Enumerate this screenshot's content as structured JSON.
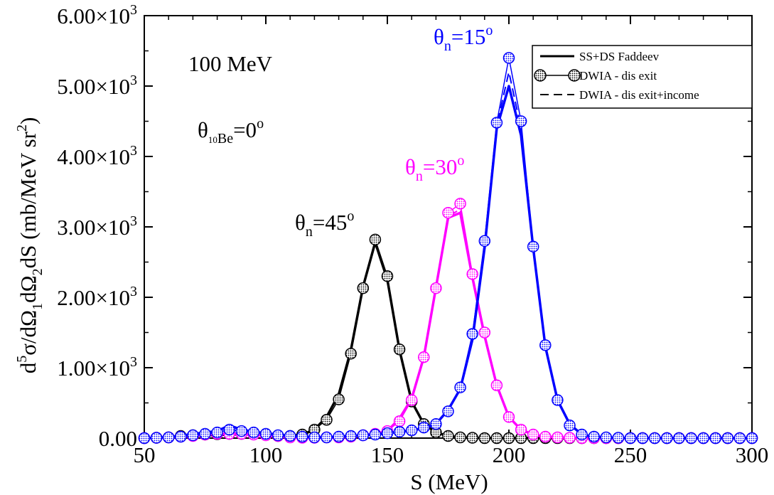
{
  "chart_data": {
    "type": "line",
    "title": "",
    "xlabel": "S (MeV)",
    "ylabel_parts": {
      "d": "d",
      "exp5": "5",
      "sigma": "σ/dΩ",
      "sub1": "1",
      "mid": "dΩ",
      "sub2": "2",
      "dS": "dS  (mb/MeV sr",
      "exp2": "2",
      "close": ")"
    },
    "xlim": [
      50,
      300
    ],
    "ylim": [
      0,
      6000
    ],
    "grid": false,
    "legend_position": "top-right",
    "x_ticks": [
      50,
      100,
      150,
      200,
      250,
      300
    ],
    "x_tick_labels": [
      "50",
      "100",
      "150",
      "200",
      "250",
      "300"
    ],
    "y_ticks": [
      0,
      1000,
      2000,
      3000,
      4000,
      5000,
      6000
    ],
    "y_tick_labels": [
      {
        "mant": "0.00",
        "exp": ""
      },
      {
        "mant": "1.00×10",
        "exp": "3"
      },
      {
        "mant": "2.00×10",
        "exp": "3"
      },
      {
        "mant": "3.00×10",
        "exp": "3"
      },
      {
        "mant": "4.00×10",
        "exp": "3"
      },
      {
        "mant": "5.00×10",
        "exp": "3"
      },
      {
        "mant": "6.00×10",
        "exp": "3"
      }
    ],
    "legend": [
      {
        "label": "SS+DS Faddeev",
        "style": "solid"
      },
      {
        "label": "DWIA - dis exit",
        "style": "circle"
      },
      {
        "label": "DWIA - dis exit+income",
        "style": "dashed"
      }
    ],
    "annotations": {
      "energy": "100 MeV",
      "be_angle": {
        "theta": "θ",
        "sub_sup": "10",
        "sub": "Be",
        "eq": "=0",
        "sup": "o"
      },
      "n45": {
        "theta": "θ",
        "sub": "n",
        "eq": "=45",
        "sup": "o"
      },
      "n30": {
        "theta": "θ",
        "sub": "n",
        "eq": "=30",
        "sup": "o"
      },
      "n15": {
        "theta": "θ",
        "sub": "n",
        "eq": "=15",
        "sup": "o"
      }
    },
    "series": [
      {
        "angle": "45",
        "color": "#000000",
        "x": [
          50,
          55,
          60,
          65,
          70,
          75,
          80,
          85,
          90,
          95,
          100,
          105,
          110,
          115,
          120,
          125,
          130,
          135,
          140,
          145,
          150,
          155,
          160,
          165,
          170,
          175,
          180,
          185,
          190,
          195,
          200,
          205,
          210,
          215,
          220,
          225,
          230,
          235,
          240,
          245,
          250,
          255,
          260,
          265,
          270,
          275,
          280,
          285,
          290,
          295,
          300
        ],
        "faddeev": [
          0,
          5,
          10,
          20,
          30,
          40,
          45,
          50,
          55,
          50,
          40,
          30,
          30,
          50,
          120,
          300,
          620,
          1250,
          2150,
          2780,
          2250,
          1250,
          520,
          200,
          80,
          30,
          10,
          5,
          0,
          0,
          0,
          0,
          0,
          0,
          0,
          0,
          0,
          0,
          0,
          0,
          0,
          0,
          0,
          0,
          0,
          0,
          0,
          0,
          0,
          0,
          0
        ],
        "dwia_exit": [
          0,
          5,
          10,
          30,
          40,
          50,
          55,
          60,
          60,
          55,
          45,
          30,
          30,
          50,
          120,
          260,
          550,
          1200,
          2130,
          2820,
          2300,
          1260,
          520,
          200,
          80,
          30,
          10,
          5,
          0,
          0,
          0,
          0,
          0,
          0,
          0,
          0,
          0,
          0,
          0,
          0,
          0,
          0,
          0,
          0,
          0,
          0,
          0,
          0,
          0,
          0,
          0
        ],
        "dwia_income": [
          0,
          5,
          10,
          25,
          35,
          45,
          50,
          55,
          55,
          50,
          40,
          30,
          30,
          50,
          120,
          290,
          600,
          1230,
          2140,
          2760,
          2260,
          1240,
          510,
          195,
          75,
          30,
          10,
          5,
          0,
          0,
          0,
          0,
          0,
          0,
          0,
          0,
          0,
          0,
          0,
          0,
          0,
          0,
          0,
          0,
          0,
          0,
          0,
          0,
          0,
          0,
          0
        ]
      },
      {
        "angle": "30",
        "color": "#ff00ff",
        "x": [
          50,
          55,
          60,
          65,
          70,
          75,
          80,
          85,
          90,
          95,
          100,
          105,
          110,
          115,
          120,
          125,
          130,
          135,
          140,
          145,
          150,
          155,
          160,
          165,
          170,
          175,
          180,
          185,
          190,
          195,
          200,
          205,
          210,
          215,
          220,
          225,
          230,
          235,
          240,
          245,
          250,
          255,
          260,
          265,
          270,
          275,
          280,
          285,
          290,
          295,
          300
        ],
        "faddeev": [
          0,
          5,
          10,
          20,
          30,
          50,
          60,
          60,
          60,
          50,
          40,
          30,
          10,
          5,
          5,
          10,
          10,
          20,
          40,
          60,
          100,
          280,
          560,
          1150,
          2140,
          3130,
          3200,
          2280,
          1450,
          750,
          300,
          120,
          50,
          20,
          10,
          5,
          0,
          0,
          0,
          0,
          0,
          0,
          0,
          0,
          0,
          0,
          0,
          0,
          0,
          0,
          0
        ],
        "dwia_exit": [
          0,
          5,
          10,
          20,
          30,
          50,
          60,
          60,
          60,
          50,
          40,
          30,
          10,
          5,
          5,
          10,
          10,
          20,
          40,
          60,
          100,
          240,
          540,
          1150,
          2130,
          3200,
          3330,
          2330,
          1500,
          750,
          300,
          120,
          50,
          20,
          10,
          5,
          0,
          0,
          0,
          0,
          0,
          0,
          0,
          0,
          0,
          0,
          0,
          0,
          0,
          0,
          0,
          0
        ],
        "dwia_income": [
          0,
          5,
          10,
          20,
          30,
          50,
          60,
          60,
          60,
          50,
          40,
          30,
          10,
          5,
          5,
          10,
          10,
          20,
          40,
          60,
          100,
          270,
          550,
          1150,
          2130,
          3150,
          3250,
          2300,
          1470,
          750,
          300,
          120,
          50,
          20,
          10,
          5,
          0,
          0,
          0,
          0,
          0,
          0,
          0,
          0,
          0,
          0,
          0,
          0,
          0,
          0,
          0,
          0
        ]
      },
      {
        "angle": "15",
        "color": "#0000ff",
        "x": [
          50,
          55,
          60,
          65,
          70,
          75,
          80,
          85,
          90,
          95,
          100,
          105,
          110,
          115,
          120,
          125,
          130,
          135,
          140,
          145,
          150,
          155,
          160,
          165,
          170,
          175,
          180,
          185,
          190,
          195,
          200,
          205,
          210,
          215,
          220,
          225,
          230,
          235,
          240,
          245,
          250,
          255,
          260,
          265,
          270,
          275,
          280,
          285,
          290,
          295,
          300
        ],
        "faddeev": [
          0,
          5,
          15,
          30,
          60,
          80,
          100,
          180,
          120,
          90,
          70,
          50,
          30,
          20,
          10,
          10,
          20,
          30,
          40,
          50,
          70,
          90,
          110,
          140,
          200,
          400,
          700,
          1400,
          2700,
          4400,
          5000,
          4300,
          2700,
          1300,
          540,
          200,
          50,
          20,
          10,
          5,
          0,
          0,
          0,
          0,
          0,
          0,
          0,
          0,
          0,
          0,
          0
        ],
        "dwia_exit": [
          0,
          5,
          10,
          20,
          40,
          60,
          80,
          120,
          100,
          80,
          60,
          40,
          30,
          20,
          10,
          10,
          20,
          30,
          40,
          50,
          70,
          90,
          110,
          150,
          200,
          380,
          720,
          1480,
          2800,
          4480,
          5400,
          4500,
          2720,
          1320,
          540,
          180,
          50,
          20,
          10,
          5,
          0,
          0,
          0,
          0,
          0,
          0,
          0,
          0,
          0,
          0,
          0
        ],
        "dwia_income": [
          0,
          5,
          12,
          25,
          50,
          70,
          90,
          150,
          110,
          85,
          65,
          45,
          30,
          20,
          10,
          10,
          20,
          30,
          40,
          50,
          70,
          90,
          110,
          145,
          200,
          390,
          710,
          1440,
          2750,
          4440,
          5200,
          4400,
          2710,
          1310,
          540,
          190,
          50,
          20,
          10,
          5,
          0,
          0,
          0,
          0,
          0,
          0,
          0,
          0,
          0,
          0,
          0
        ]
      }
    ]
  }
}
